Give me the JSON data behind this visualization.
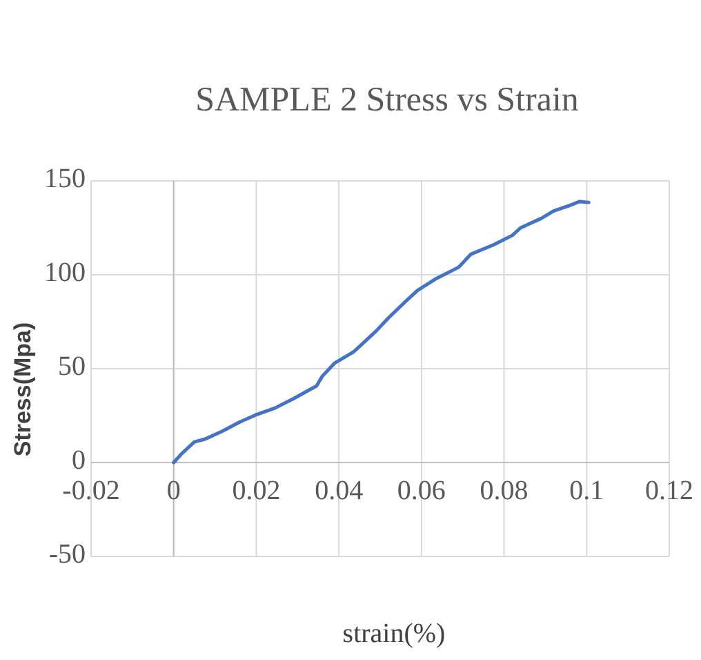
{
  "chart_data": {
    "type": "line",
    "title": "SAMPLE  2 Stress vs Strain",
    "xlabel": "strain(%)",
    "ylabel": "Stress(Mpa)",
    "series": [
      {
        "color": "#4472c4",
        "x": [
          0,
          0.0018,
          0.005,
          0.0076,
          0.0118,
          0.016,
          0.0198,
          0.0245,
          0.029,
          0.0346,
          0.036,
          0.039,
          0.0436,
          0.049,
          0.052,
          0.056,
          0.059,
          0.0636,
          0.069,
          0.072,
          0.0775,
          0.082,
          0.084,
          0.089,
          0.092,
          0.096,
          0.0983,
          0.1005
        ],
        "values": [
          0,
          4.4,
          11,
          12.5,
          16.7,
          21.6,
          25.3,
          29,
          34,
          40.8,
          46,
          53,
          59,
          70,
          77,
          85.5,
          91.6,
          98,
          104,
          111,
          116,
          121,
          125,
          130,
          134,
          137,
          139,
          138.5
        ]
      }
    ],
    "xlim": [
      -0.02,
      0.12
    ],
    "xticks": [
      -0.02,
      0,
      0.02,
      0.04,
      0.06,
      0.08,
      0.1,
      0.12
    ],
    "ylim": [
      -50,
      150
    ],
    "yticks": [
      -50,
      0,
      50,
      100,
      150
    ],
    "grid": true,
    "marker": "none",
    "line_style": "solid"
  }
}
